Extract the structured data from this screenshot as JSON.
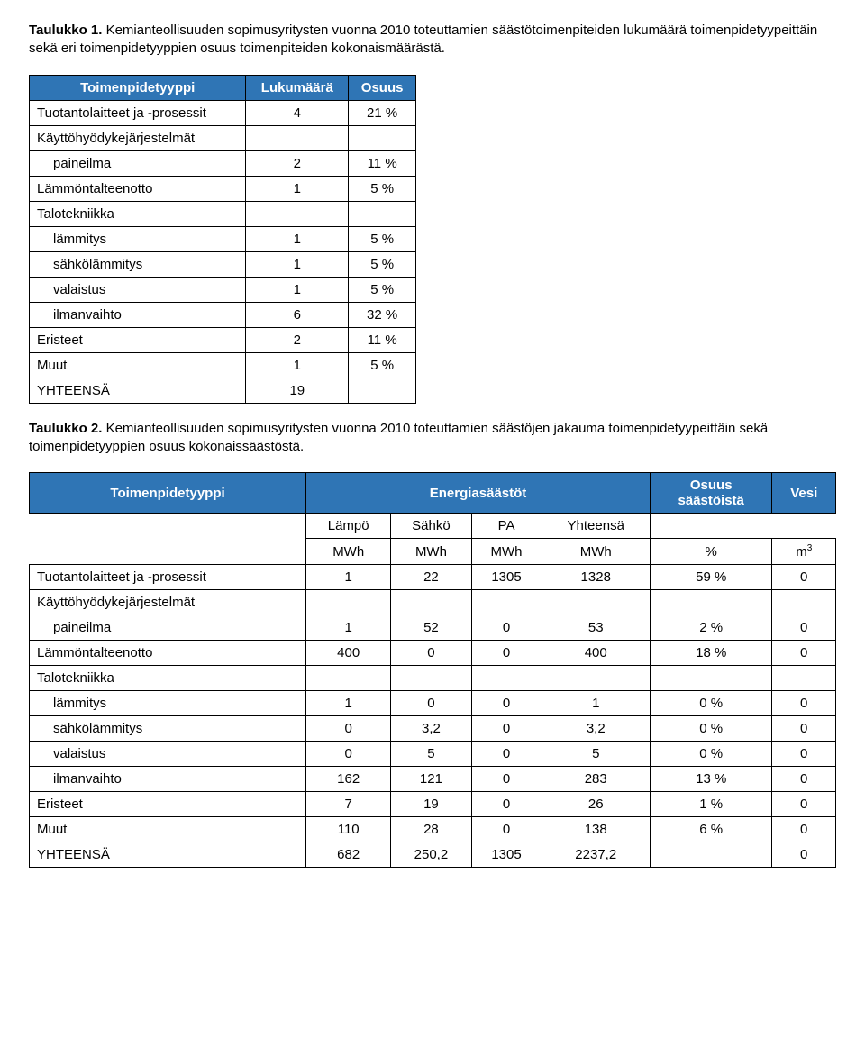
{
  "caption1": {
    "bold": "Taulukko 1.",
    "rest": " Kemianteollisuuden sopimusyritysten vuonna 2010 toteuttamien säästötoimenpiteiden lukumäärä toimenpidetyypeittäin sekä eri toimenpidetyyppien osuus toimenpiteiden kokonaismäärästä."
  },
  "table1": {
    "headers": [
      "Toimenpidetyyppi",
      "Lukumäärä",
      "Osuus"
    ],
    "rows": [
      {
        "label": "Tuotantolaitteet ja -prosessit",
        "count": "4",
        "pct": "21 %",
        "indent": false
      },
      {
        "label": "Käyttöhyödykejärjestelmät",
        "count": "",
        "pct": "",
        "indent": false,
        "empty_cells": true
      },
      {
        "label": "paineilma",
        "count": "2",
        "pct": "11 %",
        "indent": true
      },
      {
        "label": "Lämmöntalteenotto",
        "count": "1",
        "pct": "5 %",
        "indent": false
      },
      {
        "label": "Talotekniikka",
        "count": "",
        "pct": "",
        "indent": false,
        "empty_cells": true
      },
      {
        "label": "lämmitys",
        "count": "1",
        "pct": "5 %",
        "indent": true
      },
      {
        "label": "sähkölämmitys",
        "count": "1",
        "pct": "5 %",
        "indent": true
      },
      {
        "label": "valaistus",
        "count": "1",
        "pct": "5 %",
        "indent": true
      },
      {
        "label": "ilmanvaihto",
        "count": "6",
        "pct": "32 %",
        "indent": true
      },
      {
        "label": "Eristeet",
        "count": "2",
        "pct": "11 %",
        "indent": false
      },
      {
        "label": "Muut",
        "count": "1",
        "pct": "5 %",
        "indent": false
      },
      {
        "label": "YHTEENSÄ",
        "count": "19",
        "pct": "",
        "indent": false
      }
    ]
  },
  "caption2": {
    "bold": "Taulukko 2.",
    "rest": " Kemianteollisuuden sopimusyritysten vuonna 2010 toteuttamien säästöjen jakauma toimenpidetyypeittäin sekä toimenpidetyyppien osuus kokonaissäästöstä."
  },
  "table2": {
    "header_row1": {
      "c1": "Toimenpidetyyppi",
      "c2": "Energiasäästöt",
      "c3_a": "Osuus",
      "c3_b": "säästöistä",
      "c4": "Vesi"
    },
    "subheads": [
      "Lämpö",
      "Sähkö",
      "PA",
      "Yhteensä"
    ],
    "units": [
      "MWh",
      "MWh",
      "MWh",
      "MWh",
      "%",
      "m"
    ],
    "unit_sup": "3",
    "rows": [
      {
        "label": "Tuotantolaitteet ja -prosessit",
        "indent": false,
        "v": [
          "1",
          "22",
          "1305",
          "1328",
          "59 %",
          "0"
        ]
      },
      {
        "label": "Käyttöhyödykejärjestelmät",
        "indent": false,
        "empty": true
      },
      {
        "label": "paineilma",
        "indent": true,
        "v": [
          "1",
          "52",
          "0",
          "53",
          "2 %",
          "0"
        ]
      },
      {
        "label": "Lämmöntalteenotto",
        "indent": false,
        "v": [
          "400",
          "0",
          "0",
          "400",
          "18 %",
          "0"
        ]
      },
      {
        "label": "Talotekniikka",
        "indent": false,
        "empty": true
      },
      {
        "label": "lämmitys",
        "indent": true,
        "v": [
          "1",
          "0",
          "0",
          "1",
          "0 %",
          "0"
        ]
      },
      {
        "label": "sähkölämmitys",
        "indent": true,
        "v": [
          "0",
          "3,2",
          "0",
          "3,2",
          "0 %",
          "0"
        ]
      },
      {
        "label": "valaistus",
        "indent": true,
        "v": [
          "0",
          "5",
          "0",
          "5",
          "0 %",
          "0"
        ]
      },
      {
        "label": "ilmanvaihto",
        "indent": true,
        "v": [
          "162",
          "121",
          "0",
          "283",
          "13 %",
          "0"
        ]
      },
      {
        "label": "Eristeet",
        "indent": false,
        "v": [
          "7",
          "19",
          "0",
          "26",
          "1 %",
          "0"
        ]
      },
      {
        "label": "Muut",
        "indent": false,
        "v": [
          "110",
          "28",
          "0",
          "138",
          "6 %",
          "0"
        ]
      },
      {
        "label": "YHTEENSÄ",
        "indent": false,
        "v": [
          "682",
          "250,2",
          "1305",
          "2237,2",
          "",
          "0"
        ]
      }
    ]
  },
  "colors": {
    "header_bg": "#2f75b5",
    "header_fg": "#ffffff",
    "border": "#000000",
    "page_bg": "#ffffff"
  }
}
